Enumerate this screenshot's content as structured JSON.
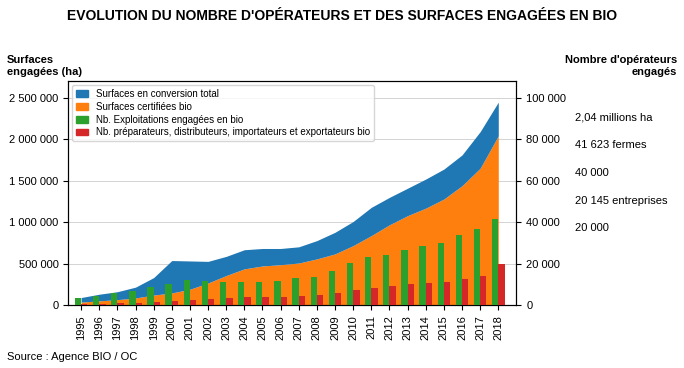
{
  "chart_data": {
    "type": "combo",
    "title": "EVOLUTION DU NOMBRE D'OPÉRATEURS ET DES SURFACES ENGAGÉES EN BIO",
    "ylabel": "Surfaces\nengagées (ha)",
    "y2label": "Nombre d'opérateurs\nengagés",
    "x": [
      1995,
      1996,
      1997,
      1998,
      1999,
      2000,
      2001,
      2002,
      2003,
      2004,
      2005,
      2006,
      2007,
      2008,
      2009,
      2010,
      2011,
      2012,
      2013,
      2014,
      2015,
      2016,
      2017,
      2018
    ],
    "xlim": [
      1994.3,
      2019.0
    ],
    "xticks": [
      1995,
      1996,
      1997,
      1998,
      1999,
      2000,
      2001,
      2002,
      2003,
      2004,
      2005,
      2006,
      2007,
      2008,
      2009,
      2010,
      2011,
      2012,
      2013,
      2014,
      2015,
      2016,
      2017,
      2018
    ],
    "ylim": [
      0,
      2700000
    ],
    "yticks": [
      0,
      {
        "value": 500000,
        "label": "500 000"
      },
      {
        "value": 1000000,
        "label": "1 000 000"
      },
      {
        "value": 1500000,
        "label": "1 500 000"
      },
      {
        "value": 2000000,
        "label": "2 000 000"
      },
      {
        "value": 2500000,
        "label": "2 500 000"
      }
    ],
    "y2lim": [
      0,
      108000
    ],
    "y2ticks": [
      0,
      {
        "value": 20000,
        "label": "20 000"
      },
      {
        "value": 40000,
        "label": "40 000"
      },
      {
        "value": 60000,
        "label": "60 000"
      },
      {
        "value": 80000,
        "label": "80 000"
      },
      {
        "value": 100000,
        "label": "100 000"
      }
    ],
    "grid": "y",
    "legend": "upper left",
    "stacked": true,
    "series": [
      {
        "name": "Surfaces en conversion total",
        "type": "area",
        "values": [
          55000,
          80000,
          95000,
          130000,
          210000,
          390000,
          340000,
          260000,
          230000,
          230000,
          210000,
          195000,
          195000,
          220000,
          260000,
          290000,
          340000,
          330000,
          330000,
          350000,
          360000,
          370000,
          440000,
          405000
        ]
      },
      {
        "name": "Surfaces certifiées bio",
        "type": "area",
        "values": [
          40000,
          55000,
          70000,
          90000,
          125000,
          150000,
          195000,
          270000,
          360000,
          440000,
          475000,
          490000,
          510000,
          560000,
          620000,
          720000,
          840000,
          970000,
          1080000,
          1170000,
          1280000,
          1440000,
          1650000,
          2040000
        ]
      },
      {
        "name": "Nb. Exploitations engagées en bio",
        "type": "bar",
        "axis": "y2",
        "values": [
          3500,
          4500,
          5800,
          7000,
          9000,
          10400,
          12000,
          11900,
          11400,
          11400,
          11400,
          11600,
          13300,
          13600,
          16400,
          20400,
          23100,
          24400,
          26466,
          28781,
          30000,
          34000,
          36800,
          41623
        ]
      },
      {
        "name": "Nb. préparateurs, distributeurs, importateurs et exportateurs bio",
        "type": "bar",
        "axis": "y2",
        "values": [
          500,
          700,
          1000,
          1300,
          1500,
          2000,
          2500,
          3000,
          3500,
          4000,
          4100,
          4200,
          4500,
          5000,
          6000,
          7200,
          8500,
          9500,
          10500,
          11000,
          11500,
          12500,
          14000,
          20145
        ]
      }
    ],
    "annotations": [
      "2,04 millions ha",
      "41 623 fermes",
      "40 000",
      "20 145 entreprises",
      "20 000"
    ],
    "source": "Source : Agence BIO / OC"
  }
}
